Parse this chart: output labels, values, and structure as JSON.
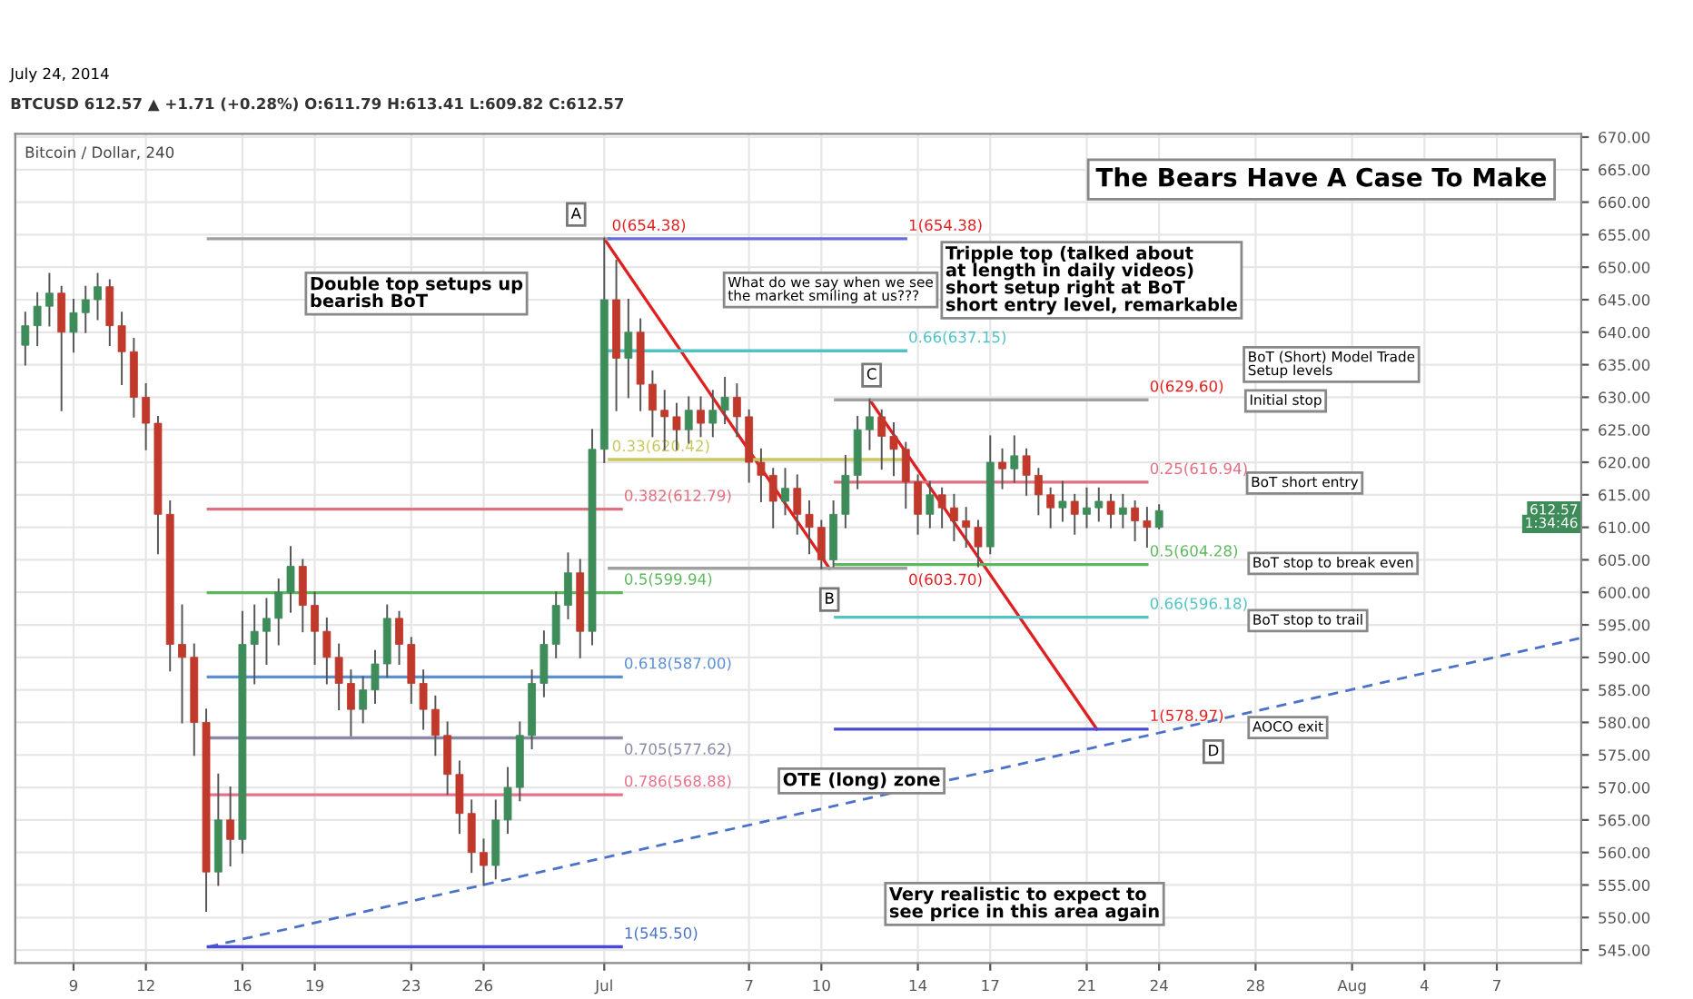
{
  "chart_data": {
    "type": "candlestick",
    "title": "The Bears Have A Case To Make",
    "subtitle": "July 24, 2014",
    "x": [
      "2014-06-07T00:00",
      "2014-06-07T12:00",
      "2014-06-08T00:00",
      "2014-06-08T12:00",
      "2014-06-09T00:00",
      "2014-06-09T12:00",
      "2014-06-10T00:00",
      "2014-06-10T12:00",
      "2014-06-11T00:00",
      "2014-06-11T12:00",
      "2014-06-12T00:00",
      "2014-06-12T12:00",
      "2014-06-13T00:00",
      "2014-06-13T12:00",
      "2014-06-14T00:00",
      "2014-06-14T12:00",
      "2014-06-15T00:00",
      "2014-06-15T12:00",
      "2014-06-16T00:00",
      "2014-06-16T12:00",
      "2014-06-17T00:00",
      "2014-06-17T12:00",
      "2014-06-18T00:00",
      "2014-06-18T12:00",
      "2014-06-19T00:00",
      "2014-06-19T12:00",
      "2014-06-20T00:00",
      "2014-06-20T12:00",
      "2014-06-21T00:00",
      "2014-06-21T12:00",
      "2014-06-22T00:00",
      "2014-06-22T12:00",
      "2014-06-23T00:00",
      "2014-06-23T12:00",
      "2014-06-24T00:00",
      "2014-06-24T12:00",
      "2014-06-25T00:00",
      "2014-06-25T12:00",
      "2014-06-26T00:00",
      "2014-06-26T12:00",
      "2014-06-27T00:00",
      "2014-06-27T12:00",
      "2014-06-28T00:00",
      "2014-06-28T12:00",
      "2014-06-29T00:00",
      "2014-06-29T12:00",
      "2014-06-30T00:00",
      "2014-06-30T12:00",
      "2014-07-01T00:00",
      "2014-07-01T12:00",
      "2014-07-02T00:00",
      "2014-07-02T12:00",
      "2014-07-03T00:00",
      "2014-07-03T12:00",
      "2014-07-04T00:00",
      "2014-07-04T12:00",
      "2014-07-05T00:00",
      "2014-07-05T12:00",
      "2014-07-06T00:00",
      "2014-07-06T12:00",
      "2014-07-07T00:00",
      "2014-07-07T12:00",
      "2014-07-08T00:00",
      "2014-07-08T12:00",
      "2014-07-09T00:00",
      "2014-07-09T12:00",
      "2014-07-10T00:00",
      "2014-07-10T12:00",
      "2014-07-11T00:00",
      "2014-07-11T12:00",
      "2014-07-12T00:00",
      "2014-07-12T12:00",
      "2014-07-13T00:00",
      "2014-07-13T12:00",
      "2014-07-14T00:00",
      "2014-07-14T12:00",
      "2014-07-15T00:00",
      "2014-07-15T12:00",
      "2014-07-16T00:00",
      "2014-07-16T12:00",
      "2014-07-17T00:00",
      "2014-07-17T12:00",
      "2014-07-18T00:00",
      "2014-07-18T12:00",
      "2014-07-19T00:00",
      "2014-07-19T12:00",
      "2014-07-20T00:00",
      "2014-07-20T12:00",
      "2014-07-21T00:00",
      "2014-07-21T12:00",
      "2014-07-22T00:00",
      "2014-07-22T12:00",
      "2014-07-23T00:00",
      "2014-07-23T12:00",
      "2014-07-24T00:00"
    ],
    "ohlc": [
      [
        638,
        643,
        635,
        641
      ],
      [
        641,
        646,
        638,
        644
      ],
      [
        644,
        649,
        641,
        646
      ],
      [
        646,
        647,
        628,
        640
      ],
      [
        640,
        645,
        637,
        643
      ],
      [
        643,
        647,
        640,
        645
      ],
      [
        645,
        649,
        642,
        647
      ],
      [
        647,
        648,
        638,
        641
      ],
      [
        641,
        643,
        632,
        637
      ],
      [
        637,
        639,
        627,
        630
      ],
      [
        630,
        632,
        622,
        626
      ],
      [
        626,
        627,
        606,
        612
      ],
      [
        612,
        614,
        588,
        592
      ],
      [
        592,
        598,
        580,
        590
      ],
      [
        590,
        592,
        575,
        580
      ],
      [
        580,
        582,
        551,
        557
      ],
      [
        557,
        572,
        555,
        565
      ],
      [
        565,
        570,
        558,
        562
      ],
      [
        562,
        597,
        560,
        592
      ],
      [
        592,
        598,
        586,
        594
      ],
      [
        594,
        599,
        589,
        596
      ],
      [
        596,
        602,
        592,
        600
      ],
      [
        600,
        607,
        597,
        604
      ],
      [
        604,
        605,
        594,
        598
      ],
      [
        598,
        600,
        589,
        594
      ],
      [
        594,
        596,
        586,
        590
      ],
      [
        590,
        592,
        582,
        586
      ],
      [
        586,
        588,
        578,
        582
      ],
      [
        582,
        587,
        580,
        585
      ],
      [
        585,
        591,
        583,
        589
      ],
      [
        589,
        598,
        587,
        596
      ],
      [
        596,
        597,
        589,
        592
      ],
      [
        592,
        593,
        583,
        586
      ],
      [
        586,
        588,
        579,
        582
      ],
      [
        582,
        584,
        575,
        578
      ],
      [
        578,
        580,
        569,
        572
      ],
      [
        572,
        574,
        563,
        566
      ],
      [
        566,
        568,
        557,
        560
      ],
      [
        560,
        562,
        555,
        558
      ],
      [
        558,
        568,
        556,
        565
      ],
      [
        565,
        573,
        563,
        570
      ],
      [
        570,
        580,
        568,
        578
      ],
      [
        578,
        588,
        576,
        586
      ],
      [
        586,
        594,
        584,
        592
      ],
      [
        592,
        600,
        590,
        598
      ],
      [
        598,
        606,
        596,
        603
      ],
      [
        603,
        605,
        590,
        594
      ],
      [
        594,
        625,
        592,
        622
      ],
      [
        622,
        654.38,
        620,
        645
      ],
      [
        645,
        651,
        628,
        636
      ],
      [
        636,
        645,
        630,
        640
      ],
      [
        640,
        642,
        628,
        632
      ],
      [
        632,
        634,
        624,
        628
      ],
      [
        628,
        631,
        622,
        627
      ],
      [
        627,
        629,
        622,
        625
      ],
      [
        625,
        630,
        623,
        628
      ],
      [
        628,
        630,
        624,
        626
      ],
      [
        626,
        631,
        624,
        628
      ],
      [
        628,
        633,
        626,
        630
      ],
      [
        630,
        632,
        624,
        627
      ],
      [
        627,
        628,
        617,
        620
      ],
      [
        620,
        622,
        614,
        618
      ],
      [
        618,
        619,
        610,
        614
      ],
      [
        614,
        619,
        612,
        616
      ],
      [
        616,
        618,
        609,
        612
      ],
      [
        612,
        614,
        606,
        610
      ],
      [
        610,
        611,
        603.7,
        605
      ],
      [
        605,
        614,
        604,
        612
      ],
      [
        612,
        621,
        610,
        618
      ],
      [
        618,
        627,
        616,
        625
      ],
      [
        625,
        629.6,
        622,
        627
      ],
      [
        627,
        628,
        619,
        624
      ],
      [
        624,
        626,
        618,
        622
      ],
      [
        622,
        623,
        613,
        617
      ],
      [
        617,
        618,
        609,
        612
      ],
      [
        612,
        617,
        610,
        615
      ],
      [
        615,
        616,
        610,
        613
      ],
      [
        613,
        615,
        608,
        611
      ],
      [
        611,
        613,
        607,
        610
      ],
      [
        610,
        611,
        604,
        607
      ],
      [
        607,
        624,
        606,
        620
      ],
      [
        620,
        622,
        616,
        619
      ],
      [
        619,
        624,
        617,
        621
      ],
      [
        621,
        622,
        615,
        618
      ],
      [
        618,
        619,
        612,
        615
      ],
      [
        615,
        616,
        610,
        613
      ],
      [
        613,
        617,
        611,
        614
      ],
      [
        614,
        615,
        609,
        612
      ],
      [
        612,
        616,
        610,
        613
      ],
      [
        613,
        616,
        611,
        614
      ],
      [
        614,
        615,
        610,
        612
      ],
      [
        612,
        615,
        610,
        613
      ],
      [
        613,
        614,
        608,
        611
      ],
      [
        611,
        613,
        607,
        610
      ],
      [
        610,
        613.41,
        609.82,
        612.57
      ]
    ],
    "series": [
      {
        "type": "line",
        "x": [
          "2014-07-01T00:00",
          "2014-07-10T08:00"
        ],
        "values": [
          654.38,
          603.7
        ],
        "color": "#e02020"
      },
      {
        "type": "line",
        "x": [
          "2014-07-12T00:00",
          "2014-07-21T10:00"
        ],
        "values": [
          629.6,
          578.97
        ],
        "color": "#e02020"
      },
      {
        "type": "line",
        "x": [
          "2014-06-14T14:00",
          "2014-08-10T12:00"
        ],
        "values": [
          545.5,
          593
        ],
        "color": "#4a72c8",
        "line_style": "dashed"
      },
      {
        "type": "line",
        "x": [
          "2014-06-14T14:00",
          "2014-07-01T05:00"
        ],
        "values": [
          654.38,
          654.38
        ],
        "color": "#a0a0a0"
      },
      {
        "type": "line",
        "x": [
          "2014-07-01T05:00",
          "2014-07-13T12:00"
        ],
        "values": [
          654.38,
          654.38
        ],
        "color": "#6a6ae0"
      },
      {
        "type": "line",
        "x": [
          "2014-06-14T14:00",
          "2014-07-01T17:00"
        ],
        "values": [
          612.79,
          612.79
        ],
        "color": "#e07080"
      },
      {
        "type": "line",
        "x": [
          "2014-06-14T14:00",
          "2014-07-01T17:00"
        ],
        "values": [
          599.94,
          599.94
        ],
        "color": "#5cb85c"
      },
      {
        "type": "line",
        "x": [
          "2014-06-14T14:00",
          "2014-07-01T17:00"
        ],
        "values": [
          587.0,
          587.0
        ],
        "color": "#5b8fd4"
      },
      {
        "type": "line",
        "x": [
          "2014-06-14T14:00",
          "2014-07-01T17:00"
        ],
        "values": [
          577.62,
          577.62
        ],
        "color": "#8a8aa8"
      },
      {
        "type": "line",
        "x": [
          "2014-06-14T14:00",
          "2014-07-01T17:00"
        ],
        "values": [
          568.88,
          568.88
        ],
        "color": "#e8708a"
      },
      {
        "type": "line",
        "x": [
          "2014-06-14T14:00",
          "2014-07-01T17:00"
        ],
        "values": [
          545.5,
          545.5
        ],
        "color": "#4a4ad8"
      },
      {
        "type": "line",
        "x": [
          "2014-07-01T05:00",
          "2014-07-13T12:00"
        ],
        "values": [
          637.15,
          637.15
        ],
        "color": "#4fc3c3"
      },
      {
        "type": "line",
        "x": [
          "2014-07-01T05:00",
          "2014-07-13T12:00"
        ],
        "values": [
          620.42,
          620.42
        ],
        "color": "#c8c860"
      },
      {
        "type": "line",
        "x": [
          "2014-07-01T05:00",
          "2014-07-13T12:00"
        ],
        "values": [
          603.7,
          603.7
        ],
        "color": "#a0a0a0"
      },
      {
        "type": "line",
        "x": [
          "2014-07-10T14:00",
          "2014-07-23T12:00"
        ],
        "values": [
          629.6,
          629.6
        ],
        "color": "#a0a0a0"
      },
      {
        "type": "line",
        "x": [
          "2014-07-10T14:00",
          "2014-07-23T12:00"
        ],
        "values": [
          616.94,
          616.94
        ],
        "color": "#e07080"
      },
      {
        "type": "line",
        "x": [
          "2014-07-10T14:00",
          "2014-07-23T12:00"
        ],
        "values": [
          604.28,
          604.28
        ],
        "color": "#5cb85c"
      },
      {
        "type": "line",
        "x": [
          "2014-07-10T14:00",
          "2014-07-23T12:00"
        ],
        "values": [
          596.18,
          596.18
        ],
        "color": "#4fc3c3"
      },
      {
        "type": "line",
        "x": [
          "2014-07-10T14:00",
          "2014-07-23T12:00"
        ],
        "values": [
          578.97,
          578.97
        ],
        "color": "#4a4ad8"
      }
    ],
    "xlim": [
      "2014-06-06T14:00",
      "2014-08-10T12:00"
    ],
    "xticks": [
      {
        "value": "2014-06-09",
        "label": "9"
      },
      {
        "value": "2014-06-12",
        "label": "12"
      },
      {
        "value": "2014-06-16",
        "label": "16"
      },
      {
        "value": "2014-06-19",
        "label": "19"
      },
      {
        "value": "2014-06-23",
        "label": "23"
      },
      {
        "value": "2014-06-26",
        "label": "26"
      },
      {
        "value": "2014-07-01",
        "label": "Jul"
      },
      {
        "value": "2014-07-07",
        "label": "7"
      },
      {
        "value": "2014-07-10",
        "label": "10"
      },
      {
        "value": "2014-07-14",
        "label": "14"
      },
      {
        "value": "2014-07-17",
        "label": "17"
      },
      {
        "value": "2014-07-21",
        "label": "21"
      },
      {
        "value": "2014-07-24",
        "label": "24"
      },
      {
        "value": "2014-07-28",
        "label": "28"
      },
      {
        "value": "2014-08-01",
        "label": "Aug"
      },
      {
        "value": "2014-08-04",
        "label": "4"
      },
      {
        "value": "2014-08-07",
        "label": "7"
      }
    ],
    "ylim": [
      543,
      670.5
    ],
    "yticks": [
      {
        "value": 545,
        "label": "545.00"
      },
      {
        "value": 550,
        "label": "550.00"
      },
      {
        "value": 555,
        "label": "555.00"
      },
      {
        "value": 560,
        "label": "560.00"
      },
      {
        "value": 565,
        "label": "565.00"
      },
      {
        "value": 570,
        "label": "570.00"
      },
      {
        "value": 575,
        "label": "575.00"
      },
      {
        "value": 580,
        "label": "580.00"
      },
      {
        "value": 585,
        "label": "585.00"
      },
      {
        "value": 590,
        "label": "590.00"
      },
      {
        "value": 595,
        "label": "595.00"
      },
      {
        "value": 600,
        "label": "600.00"
      },
      {
        "value": 605,
        "label": "605.00"
      },
      {
        "value": 610,
        "label": "610.00"
      },
      {
        "value": 615,
        "label": "615.00"
      },
      {
        "value": 620,
        "label": "620.00"
      },
      {
        "value": 625,
        "label": "625.00"
      },
      {
        "value": 630,
        "label": "630.00"
      },
      {
        "value": 635,
        "label": "635.00"
      },
      {
        "value": 640,
        "label": "640.00"
      },
      {
        "value": 645,
        "label": "645.00"
      },
      {
        "value": 650,
        "label": "650.00"
      },
      {
        "value": 655,
        "label": "655.00"
      },
      {
        "value": 660,
        "label": "660.00"
      },
      {
        "value": 665,
        "label": "665.00"
      },
      {
        "value": 670,
        "label": "670.00"
      }
    ],
    "grid": true,
    "annotations": [
      "Bitcoin / Dollar, 240",
      "BTCUSD 612.57 ▲ +1.71 (+0.28%) O:611.79 H:613.41 L:609.82 C:612.57",
      "1:34:46",
      "Double top setups up\nbearish BoT",
      "What do we say when we see\nthe market smiling at us???",
      "Tripple top (talked about\nat length in daily videos)\nshort setup right at BoT\nshort entry level, remarkable",
      "BoT (Short) Model Trade\nSetup levels",
      "Initial stop",
      "BoT short entry",
      "BoT stop to break even",
      "BoT stop to trail",
      "AOCO exit",
      "OTE (long) zone",
      "Very realistic to expect to\nsee price in this area again",
      {
        "text": "612.57",
        "y": 612.57
      },
      {
        "text": "A",
        "x": "2014-06-29T20:00",
        "y": 658.1
      },
      {
        "text": "B",
        "x": "2014-07-10T08:00",
        "y": 598.9
      },
      {
        "text": "C",
        "x": "2014-07-12T02:00",
        "y": 633.4
      },
      {
        "text": "D",
        "x": "2014-07-26T06:00",
        "y": 575.5
      },
      {
        "text": "0(654.38)",
        "x": "2014-07-01T05:00",
        "y": 654.38
      },
      {
        "text": "1(654.38)",
        "x": "2014-07-13T12:00",
        "y": 654.38
      },
      {
        "text": "0.66(637.15)",
        "x": "2014-07-13T12:00",
        "y": 637.15
      },
      {
        "text": "0.33(620.42)",
        "x": "2014-07-01T05:00",
        "y": 620.42
      },
      {
        "text": "0(603.70)",
        "x": "2014-07-13T12:00",
        "y": 603.7
      },
      {
        "text": "0.382(612.79)",
        "x": "2014-07-01T17:00",
        "y": 612.79
      },
      {
        "text": "0.5(599.94)",
        "x": "2014-07-01T17:00",
        "y": 599.94
      },
      {
        "text": "0.618(587.00)",
        "x": "2014-07-01T17:00",
        "y": 587.0
      },
      {
        "text": "0.705(577.62)",
        "x": "2014-07-01T17:00",
        "y": 577.62
      },
      {
        "text": "0.786(568.88)",
        "x": "2014-07-01T17:00",
        "y": 568.88
      },
      {
        "text": "1(545.50)",
        "x": "2014-07-01T17:00",
        "y": 545.5
      },
      {
        "text": "0(629.60)",
        "x": "2014-07-23T12:00",
        "y": 629.6
      },
      {
        "text": "0.25(616.94)",
        "x": "2014-07-23T12:00",
        "y": 616.94
      },
      {
        "text": "0.5(604.28)",
        "x": "2014-07-23T12:00",
        "y": 604.28
      },
      {
        "text": "0.66(596.18)",
        "x": "2014-07-23T12:00",
        "y": 596.18
      },
      {
        "text": "1(578.97)",
        "x": "2014-07-23T12:00",
        "y": 578.97
      }
    ]
  }
}
